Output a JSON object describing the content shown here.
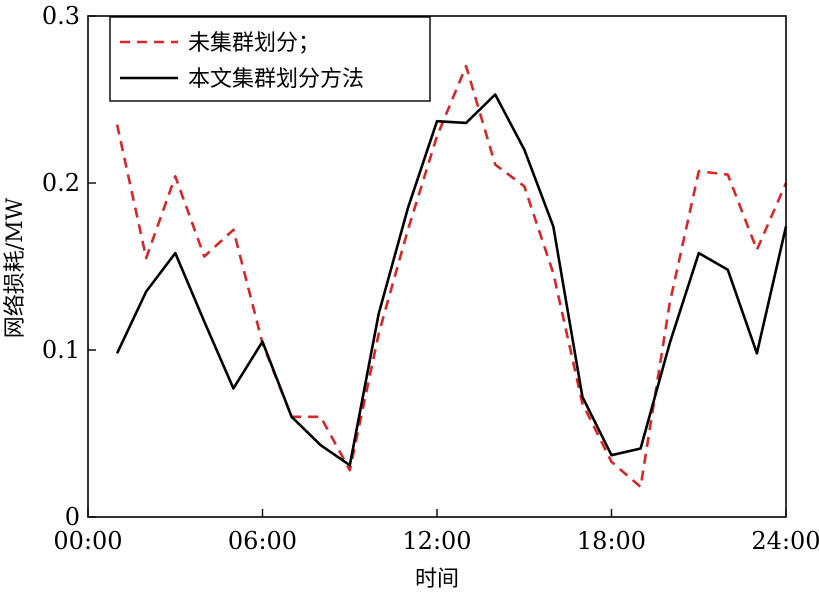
{
  "chart_data": {
    "type": "line",
    "xlabel": "时间",
    "ylabel": "网络损耗/MW",
    "xlim": [
      0,
      24
    ],
    "ylim": [
      0,
      0.3
    ],
    "x_ticks": [
      0,
      6,
      12,
      18,
      24
    ],
    "x_tick_labels": [
      "00:00",
      "06:00",
      "12:00",
      "18:00",
      "24:00"
    ],
    "y_ticks": [
      0,
      0.1,
      0.2,
      0.3
    ],
    "y_tick_labels": [
      "0",
      "0.1",
      "0.2",
      "0.3"
    ],
    "grid": false,
    "legend_position": "top-left",
    "x": [
      1,
      2,
      3,
      4,
      5,
      6,
      7,
      8,
      9,
      10,
      11,
      12,
      13,
      14,
      15,
      16,
      17,
      18,
      19,
      20,
      21,
      22,
      23,
      24
    ],
    "series": [
      {
        "name": "未集群划分；",
        "color": "#d62728",
        "dash": "dashed",
        "values": [
          0.235,
          0.155,
          0.204,
          0.156,
          0.172,
          0.104,
          0.06,
          0.06,
          0.028,
          0.11,
          0.172,
          0.228,
          0.27,
          0.211,
          0.198,
          0.146,
          0.068,
          0.033,
          0.018,
          0.128,
          0.207,
          0.205,
          0.16,
          0.2
        ]
      },
      {
        "name": "本文集群划分方法",
        "color": "#000000",
        "dash": "solid",
        "values": [
          0.098,
          0.135,
          0.158,
          0.117,
          0.077,
          0.105,
          0.06,
          0.043,
          0.031,
          0.122,
          0.185,
          0.237,
          0.236,
          0.253,
          0.22,
          0.174,
          0.072,
          0.037,
          0.041,
          0.104,
          0.158,
          0.148,
          0.098,
          0.174
        ]
      }
    ]
  }
}
